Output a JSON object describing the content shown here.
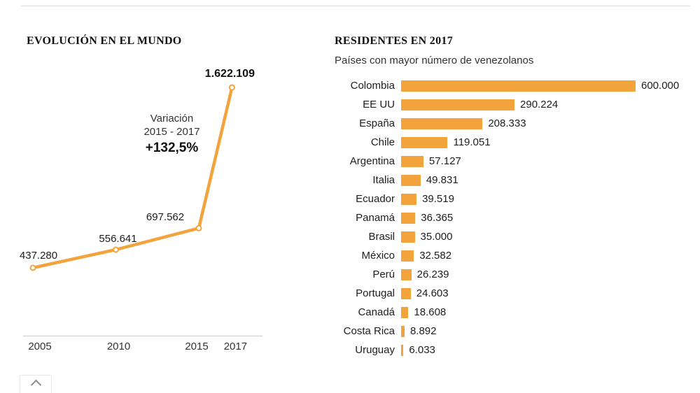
{
  "accent_color": "#F2A33C",
  "icons": {
    "scroll_top": "chevron-up"
  },
  "chart_data": [
    {
      "type": "line",
      "title": "EVOLUCIÓN EN EL MUNDO",
      "x": [
        "2005",
        "2010",
        "2015",
        "2017"
      ],
      "values": [
        437280,
        556641,
        697562,
        1622109
      ],
      "value_labels": [
        "437.280",
        "556.641",
        "697.562",
        "1.622.109"
      ],
      "annotation": {
        "line1": "Variación",
        "line2": "2015 - 2017",
        "line3": "+132,5%"
      },
      "xlabel": "",
      "ylabel": "",
      "grid": false,
      "ylim": [
        400000,
        1700000
      ]
    },
    {
      "type": "bar",
      "title": "RESIDENTES EN 2017",
      "subtitle": "Países con mayor número de venezolanos",
      "orientation": "horizontal",
      "categories": [
        "Colombia",
        "EE UU",
        "España",
        "Chile",
        "Argentina",
        "Italia",
        "Ecuador",
        "Panamá",
        "Brasil",
        "México",
        "Perú",
        "Portugal",
        "Canadá",
        "Costa Rica",
        "Uruguay"
      ],
      "values": [
        600000,
        290224,
        208333,
        119051,
        57127,
        49831,
        39519,
        36365,
        35000,
        32582,
        26239,
        24603,
        18608,
        8892,
        6033
      ],
      "value_labels": [
        "600.000",
        "290.224",
        "208.333",
        "119.051",
        "57.127",
        "49.831",
        "39.519",
        "36.365",
        "35.000",
        "32.582",
        "26.239",
        "24.603",
        "18.608",
        "8.892",
        "6.033"
      ],
      "xmax": 600000,
      "grid": false,
      "legend": "none"
    }
  ]
}
